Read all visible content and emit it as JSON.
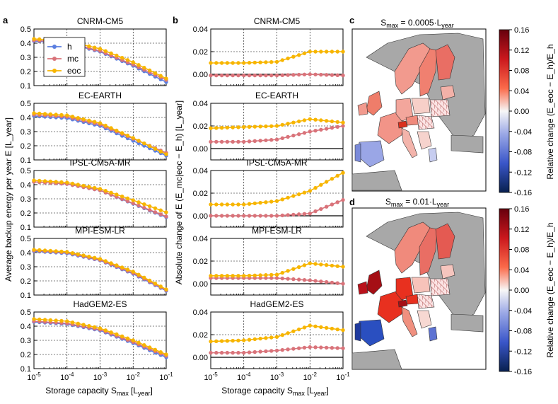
{
  "panel_letters": {
    "a": "a",
    "b": "b",
    "c": "c",
    "d": "d"
  },
  "x_tick_labels": [
    "10-5",
    "10-4",
    "10-3",
    "10-2",
    "10-1"
  ],
  "x_label": {
    "main": "Storage capacity S",
    "sub": "max",
    "bracket": "[L",
    "bracket_sub": "year",
    "close": "]"
  },
  "ylabel_a": "Average backup energy per year E [L_year]",
  "ylabel_b": "Absolute change of E (E_mc|eoc − E_h) [L_year]",
  "legend": [
    {
      "key": "h",
      "label": "h",
      "color": "#5b7fe0"
    },
    {
      "key": "mc",
      "label": "mc",
      "color": "#d9737a"
    },
    {
      "key": "eoc",
      "label": "eoc",
      "color": "#f7b500"
    }
  ],
  "colors": {
    "h": "#5b7fe0",
    "mc": "#d9737a",
    "eoc": "#f7b500",
    "grid": "#000000"
  },
  "map_c": {
    "title_main": "S",
    "title_sub": "max",
    "title_rest": " = 0.0005·L",
    "title_sub2": "year"
  },
  "map_d": {
    "title_main": "S",
    "title_sub": "max",
    "title_rest": " = 0.01·L",
    "title_sub2": "year"
  },
  "colorbar": {
    "ticks": [
      "0.16",
      "0.12",
      "0.08",
      "0.04",
      "0.00",
      "-0.04",
      "-0.08",
      "-0.12",
      "-0.16"
    ],
    "label": "Relative change (E_eoc − E_h)/E_h",
    "colormap": "blue-white-red",
    "range": [
      -0.16,
      0.16
    ]
  },
  "chart_data": [
    {
      "type": "line",
      "panel": "a",
      "title": "CNRM-CM5",
      "xscale": "log",
      "x": [
        1e-05,
        0.0001,
        0.001,
        0.01,
        0.1
      ],
      "ylim": [
        0.1,
        0.5
      ],
      "yticks": [
        "0.5",
        "0.4",
        "0.3",
        "0.2",
        "0.1"
      ],
      "grid": true,
      "series": [
        {
          "name": "h",
          "values": [
            0.415,
            0.4,
            0.34,
            0.24,
            0.125
          ]
        },
        {
          "name": "mc",
          "values": [
            0.42,
            0.405,
            0.345,
            0.248,
            0.14
          ]
        },
        {
          "name": "eoc",
          "values": [
            0.43,
            0.415,
            0.36,
            0.265,
            0.15
          ]
        }
      ]
    },
    {
      "type": "line",
      "panel": "a",
      "title": "EC-EARTH",
      "xscale": "log",
      "x": [
        1e-05,
        0.0001,
        0.001,
        0.01,
        0.1
      ],
      "ylim": [
        0.1,
        0.5
      ],
      "yticks": [
        "0.5",
        "0.4",
        "0.3",
        "0.2",
        "0.1"
      ],
      "grid": true,
      "series": [
        {
          "name": "h",
          "values": [
            0.41,
            0.395,
            0.34,
            0.235,
            0.13
          ]
        },
        {
          "name": "mc",
          "values": [
            0.42,
            0.405,
            0.35,
            0.25,
            0.15
          ]
        },
        {
          "name": "eoc",
          "values": [
            0.43,
            0.415,
            0.36,
            0.255,
            0.14
          ]
        }
      ]
    },
    {
      "type": "line",
      "panel": "a",
      "title": "IPSL-CM5A-MR",
      "xscale": "log",
      "x": [
        1e-05,
        0.0001,
        0.001,
        0.01,
        0.1
      ],
      "ylim": [
        0.1,
        0.5
      ],
      "yticks": [
        "0.5",
        "0.4",
        "0.3",
        "0.2",
        "0.1"
      ],
      "grid": true,
      "series": [
        {
          "name": "h",
          "values": [
            0.42,
            0.405,
            0.36,
            0.265,
            0.17
          ]
        },
        {
          "name": "mc",
          "values": [
            0.42,
            0.405,
            0.36,
            0.268,
            0.175
          ]
        },
        {
          "name": "eoc",
          "values": [
            0.43,
            0.415,
            0.37,
            0.29,
            0.205
          ]
        }
      ]
    },
    {
      "type": "line",
      "panel": "a",
      "title": "MPI-ESM-LR",
      "xscale": "log",
      "x": [
        1e-05,
        0.0001,
        0.001,
        0.01,
        0.1
      ],
      "ylim": [
        0.1,
        0.5
      ],
      "yticks": [
        "0.5",
        "0.4",
        "0.3",
        "0.2",
        "0.1"
      ],
      "grid": true,
      "series": [
        {
          "name": "h",
          "values": [
            0.41,
            0.395,
            0.345,
            0.25,
            0.13
          ]
        },
        {
          "name": "mc",
          "values": [
            0.415,
            0.4,
            0.348,
            0.255,
            0.135
          ]
        },
        {
          "name": "eoc",
          "values": [
            0.42,
            0.405,
            0.355,
            0.265,
            0.14
          ]
        }
      ]
    },
    {
      "type": "line",
      "panel": "a",
      "title": "HadGEM2-ES",
      "xscale": "log",
      "x": [
        1e-05,
        0.0001,
        0.001,
        0.01,
        0.1
      ],
      "ylim": [
        0.1,
        0.5
      ],
      "yticks": [
        "0.5",
        "0.4",
        "0.3",
        "0.2",
        "0.1"
      ],
      "grid": true,
      "series": [
        {
          "name": "h",
          "values": [
            0.43,
            0.415,
            0.37,
            0.28,
            0.18
          ]
        },
        {
          "name": "mc",
          "values": [
            0.435,
            0.42,
            0.375,
            0.288,
            0.19
          ]
        },
        {
          "name": "eoc",
          "values": [
            0.45,
            0.435,
            0.385,
            0.3,
            0.2
          ]
        }
      ]
    },
    {
      "type": "line",
      "panel": "b",
      "title": "CNRM-CM5",
      "xscale": "log",
      "x": [
        1e-05,
        0.0001,
        0.001,
        0.01,
        0.1
      ],
      "ylim": [
        -0.01,
        0.04
      ],
      "yticks": [
        "0.04",
        "0.02",
        "0.00"
      ],
      "grid": true,
      "series": [
        {
          "name": "mc",
          "values": [
            -0.001,
            -0.001,
            -0.001,
            0.0,
            -0.001
          ]
        },
        {
          "name": "eoc",
          "values": [
            0.01,
            0.01,
            0.011,
            0.02,
            0.02
          ]
        }
      ]
    },
    {
      "type": "line",
      "panel": "b",
      "title": "EC-EARTH",
      "xscale": "log",
      "x": [
        1e-05,
        0.0001,
        0.001,
        0.01,
        0.1
      ],
      "ylim": [
        -0.01,
        0.04
      ],
      "yticks": [
        "0.04",
        "0.02",
        "0.00"
      ],
      "grid": true,
      "series": [
        {
          "name": "mc",
          "values": [
            0.006,
            0.006,
            0.008,
            0.015,
            0.02
          ]
        },
        {
          "name": "eoc",
          "values": [
            0.018,
            0.019,
            0.02,
            0.026,
            0.023
          ]
        }
      ]
    },
    {
      "type": "line",
      "panel": "b",
      "title": "IPSL-CM5A-MR",
      "xscale": "log",
      "x": [
        1e-05,
        0.0001,
        0.001,
        0.01,
        0.1
      ],
      "ylim": [
        -0.01,
        0.04
      ],
      "yticks": [
        "0.04",
        "0.02",
        "0.00"
      ],
      "grid": true,
      "series": [
        {
          "name": "mc",
          "values": [
            0.0,
            0.0,
            0.0,
            0.002,
            0.014
          ]
        },
        {
          "name": "eoc",
          "values": [
            0.01,
            0.01,
            0.013,
            0.022,
            0.038
          ]
        }
      ]
    },
    {
      "type": "line",
      "panel": "b",
      "title": "MPI-ESM-LR",
      "xscale": "log",
      "x": [
        1e-05,
        0.0001,
        0.001,
        0.01,
        0.1
      ],
      "ylim": [
        -0.01,
        0.04
      ],
      "yticks": [
        "0.04",
        "0.02",
        "0.00"
      ],
      "grid": true,
      "series": [
        {
          "name": "mc",
          "values": [
            0.005,
            0.005,
            0.005,
            0.003,
            0.0
          ]
        },
        {
          "name": "eoc",
          "values": [
            0.007,
            0.007,
            0.008,
            0.018,
            0.015
          ]
        }
      ]
    },
    {
      "type": "line",
      "panel": "b",
      "title": "HadGEM2-ES",
      "xscale": "log",
      "x": [
        1e-05,
        0.0001,
        0.001,
        0.01,
        0.1
      ],
      "ylim": [
        -0.01,
        0.04
      ],
      "yticks": [
        "0.04",
        "0.02",
        "0.00"
      ],
      "grid": true,
      "series": [
        {
          "name": "mc",
          "values": [
            0.004,
            0.004,
            0.006,
            0.009,
            0.008
          ]
        },
        {
          "name": "eoc",
          "values": [
            0.014,
            0.015,
            0.018,
            0.028,
            0.024
          ]
        }
      ]
    }
  ]
}
